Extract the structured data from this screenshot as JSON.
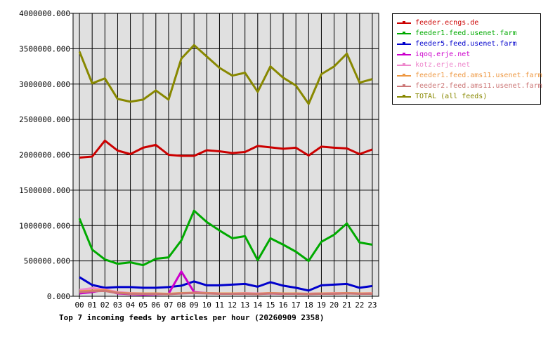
{
  "chart_data": {
    "type": "line",
    "title": "Top 7 incoming feeds by articles per hour (20260909 2358)",
    "xlabel": "",
    "ylabel": "",
    "categories": [
      "00",
      "01",
      "02",
      "03",
      "04",
      "05",
      "06",
      "07",
      "08",
      "09",
      "10",
      "11",
      "12",
      "13",
      "14",
      "15",
      "16",
      "17",
      "18",
      "19",
      "20",
      "21",
      "22",
      "23"
    ],
    "ylim": [
      0,
      4000000
    ],
    "yticks": [
      "0.000",
      "500000.000",
      "1000000.000",
      "1500000.000",
      "2000000.000",
      "2500000.000",
      "3000000.000",
      "3500000.000",
      "4000000.000"
    ],
    "grid": true,
    "legend_position": "right",
    "series": [
      {
        "name": "feeder.ecngs.de",
        "color": "#cc0000",
        "values": [
          1960000,
          1975000,
          2200000,
          2060000,
          2010000,
          2100000,
          2140000,
          2000000,
          1985000,
          1985000,
          2065000,
          2050000,
          2025000,
          2040000,
          2125000,
          2105000,
          2085000,
          2100000,
          1990000,
          2115000,
          2100000,
          2090000,
          2010000,
          2075000
        ]
      },
      {
        "name": "feeder1.feed.usenet.farm",
        "color": "#00aa00",
        "values": [
          1100000,
          660000,
          520000,
          460000,
          480000,
          440000,
          530000,
          550000,
          790000,
          1210000,
          1050000,
          930000,
          820000,
          850000,
          510000,
          820000,
          730000,
          630000,
          500000,
          770000,
          870000,
          1030000,
          760000,
          730000
        ]
      },
      {
        "name": "feeder5.feed.usenet.farm",
        "color": "#0000cc",
        "values": [
          270000,
          160000,
          120000,
          130000,
          130000,
          120000,
          120000,
          130000,
          150000,
          210000,
          155000,
          155000,
          165000,
          175000,
          135000,
          200000,
          150000,
          120000,
          80000,
          155000,
          165000,
          175000,
          120000,
          145000
        ]
      },
      {
        "name": "iqoq.erje.net",
        "color": "#cc00cc",
        "values": [
          40000,
          60000,
          90000,
          40000,
          30000,
          25000,
          30000,
          35000,
          350000,
          60000,
          45000,
          40000,
          40000,
          40000,
          35000,
          40000,
          35000,
          35000,
          35000,
          40000,
          40000,
          40000,
          40000,
          40000
        ]
      },
      {
        "name": "kotz.erje.net",
        "color": "#ee88cc",
        "values": [
          90000,
          115000,
          95000,
          60000,
          45000,
          40000,
          40000,
          30000,
          40000,
          50000,
          45000,
          40000,
          40000,
          45000,
          40000,
          45000,
          40000,
          40000,
          35000,
          40000,
          45000,
          45000,
          40000,
          45000
        ]
      },
      {
        "name": "feeder1.feed.ams11.usenet.farm",
        "color": "#ee9944",
        "values": [
          70000,
          80000,
          85000,
          50000,
          40000,
          40000,
          40000,
          35000,
          45000,
          50000,
          45000,
          40000,
          40000,
          40000,
          35000,
          45000,
          40000,
          40000,
          35000,
          40000,
          40000,
          45000,
          40000,
          40000
        ]
      },
      {
        "name": "feeder2.feed.ams11.usenet.farm",
        "color": "#cc7777",
        "values": [
          60000,
          70000,
          75000,
          45000,
          35000,
          35000,
          35000,
          30000,
          40000,
          45000,
          40000,
          35000,
          35000,
          35000,
          30000,
          40000,
          35000,
          35000,
          30000,
          35000,
          35000,
          40000,
          35000,
          35000
        ]
      },
      {
        "name": "TOTAL (all feeds)",
        "color": "#888800",
        "values": [
          3460000,
          3010000,
          3080000,
          2790000,
          2750000,
          2780000,
          2910000,
          2780000,
          3360000,
          3550000,
          3390000,
          3230000,
          3120000,
          3160000,
          2890000,
          3250000,
          3090000,
          2980000,
          2720000,
          3140000,
          3250000,
          3430000,
          3020000,
          3070000
        ]
      }
    ]
  }
}
